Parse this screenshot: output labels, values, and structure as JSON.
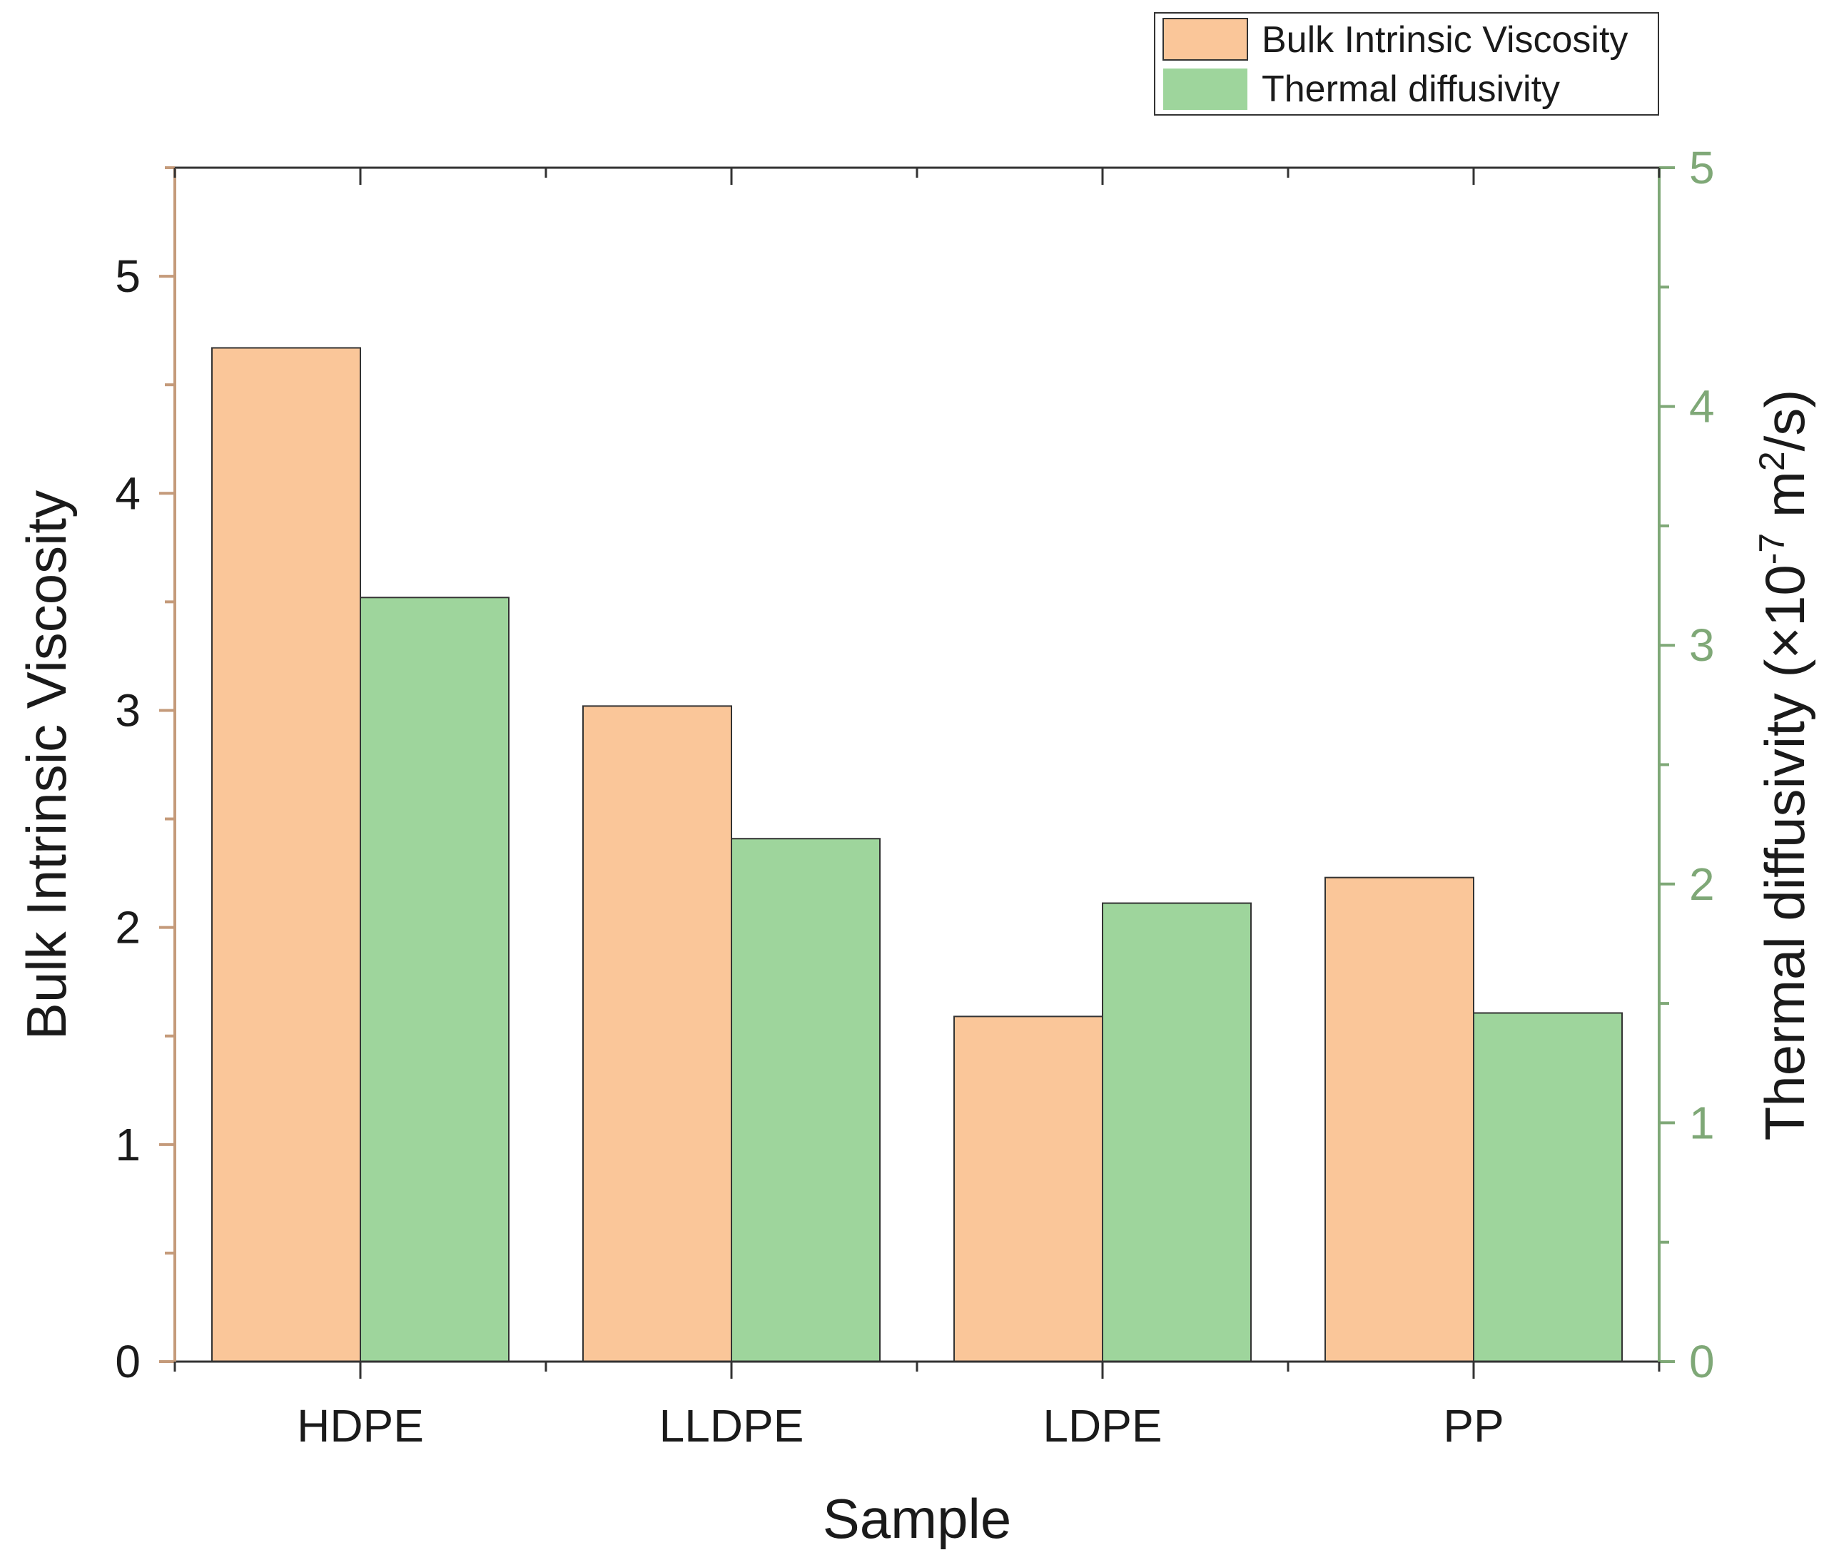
{
  "chart_data": {
    "type": "bar",
    "categories": [
      "HDPE",
      "LLDPE",
      "LDPE",
      "PP"
    ],
    "xlabel": "Sample",
    "series": [
      {
        "name": "Bulk Intrinsic Viscosity",
        "axis": "left",
        "color": "#FAC699",
        "values": [
          4.67,
          3.02,
          1.59,
          2.23
        ]
      },
      {
        "name": "Thermal diffusivity",
        "axis": "right",
        "color": "#9ED59C",
        "values": [
          3.2,
          2.19,
          1.92,
          1.46
        ]
      }
    ],
    "y_left": {
      "label": "Bulk Intrinsic Viscosity",
      "ylim": [
        0,
        5.5
      ],
      "ticks": [
        0,
        1,
        2,
        3,
        4,
        5
      ],
      "color": "#C49A7A"
    },
    "y_right": {
      "label_main": "Thermal diffusivity (×10",
      "label_exp1": "-7",
      "label_mid": " m",
      "label_exp2": "2",
      "label_end": "/s)",
      "ylim": [
        0,
        5
      ],
      "ticks": [
        0,
        1,
        2,
        3,
        4,
        5
      ],
      "color": "#7FA877"
    },
    "legend": {
      "position": "top-right",
      "entries": [
        "Bulk Intrinsic Viscosity",
        "Thermal diffusivity"
      ]
    }
  }
}
